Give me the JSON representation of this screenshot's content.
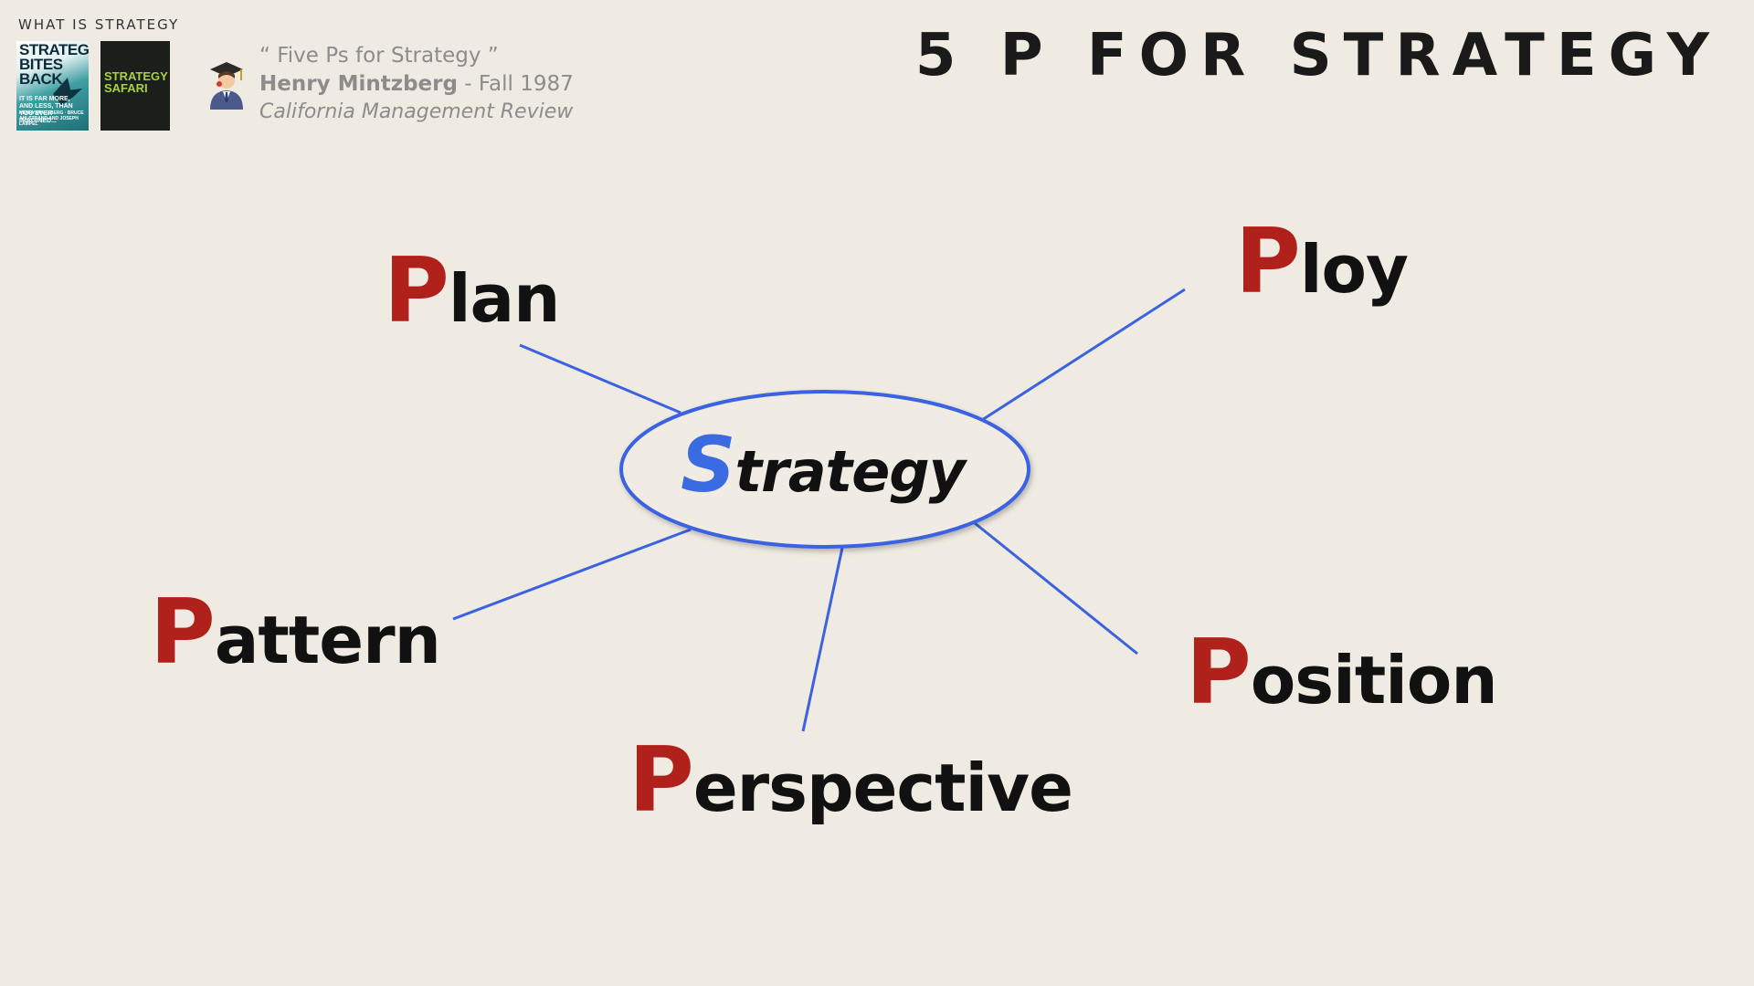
{
  "header": {
    "section_label": "WHAT IS STRATEGY",
    "title": "5 P FOR STRATEGY"
  },
  "books": [
    {
      "title_lines": [
        "STRATEGY",
        "BITES",
        "BACK"
      ],
      "subtitle_lines": [
        "IT IS FAR MORE,",
        "AND LESS, THAN",
        "YOU EVER IMAGINED..."
      ],
      "authors": "HENRY MINTZBERG · BRUCE AHLSTRAND AND JOSEPH LAMPEL"
    },
    {
      "title_lines": [
        "STRATEGY",
        "SAFARI"
      ]
    }
  ],
  "reference": {
    "quote": "“ Five Ps for Strategy ”",
    "author": "Henry Mintzberg",
    "date": " - Fall 1987",
    "journal": "California Management Review"
  },
  "diagram": {
    "center": {
      "initial": "S",
      "rest": "trategy"
    },
    "items": [
      {
        "id": "plan",
        "initial": "P",
        "rest": "lan"
      },
      {
        "id": "ploy",
        "initial": "P",
        "rest": "loy"
      },
      {
        "id": "pattern",
        "initial": "P",
        "rest": "attern"
      },
      {
        "id": "position",
        "initial": "P",
        "rest": "osition"
      },
      {
        "id": "perspective",
        "initial": "P",
        "rest": "erspective"
      }
    ],
    "colors": {
      "p_initial": "#b0211b",
      "s_initial": "#3b6be0",
      "connector": "#3b62e0",
      "text": "#111111",
      "background": "#efebe2"
    }
  },
  "icons": {
    "presenter": "graduate-person-icon"
  }
}
